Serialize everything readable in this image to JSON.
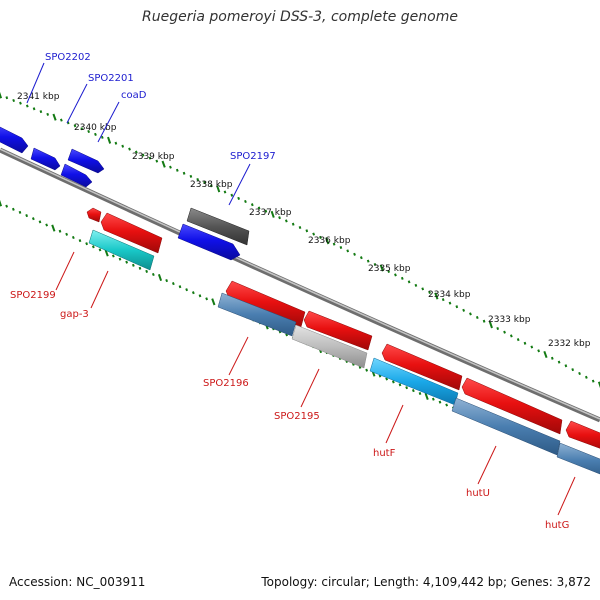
{
  "title": "Ruegeria pomeroyi DSS-3, complete genome",
  "footer": {
    "accession": "Accession: NC_003911",
    "stats": "Topology: circular; Length: 4,109,442 bp; Genes: 3,872"
  },
  "colors": {
    "forward_gene": "#1010e8",
    "reverse_gene": "#e81010",
    "rna_gene": "#19c8c8",
    "pseudo_gene": "#555555",
    "tick_dot": "#137a13",
    "backbone": "#777777",
    "forward_label": "#1c1ccf",
    "reverse_label": "#cc1818"
  },
  "tick_labels": [
    "2341 kbp",
    "2340 kbp",
    "2339 kbp",
    "2338 kbp",
    "2337 kbp",
    "2336 kbp",
    "2335 kbp",
    "2334 kbp",
    "2333 kbp",
    "2332 kbp"
  ],
  "forward_labels": [
    "SPO2202",
    "SPO2201",
    "coaD",
    "SPO2197"
  ],
  "reverse_labels": [
    "SPO2199",
    "gap-3",
    "SPO2196",
    "SPO2195",
    "hutF",
    "hutU",
    "hutG"
  ]
}
